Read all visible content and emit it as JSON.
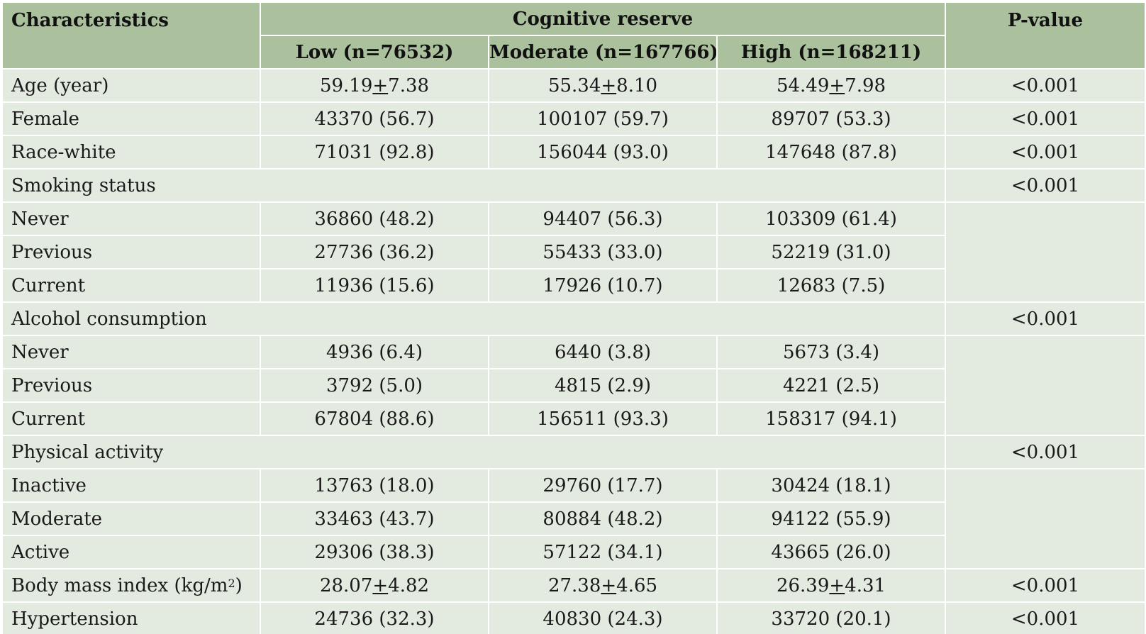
{
  "table": {
    "header": {
      "characteristics": "Characteristics",
      "group": "Cognitive reserve",
      "low": "Low (n=76532)",
      "moderate": "Moderate (n=167766)",
      "high": "High (n=168211)",
      "pvalue": "P-value"
    },
    "rows": {
      "age": {
        "label": "Age (year)",
        "low_mean": "59.19",
        "low_sd": "7.38",
        "mod_mean": "55.34",
        "mod_sd": "8.10",
        "high_mean": "54.49",
        "high_sd": "7.98",
        "p": "<0.001"
      },
      "female": {
        "label": "Female",
        "low": "43370 (56.7)",
        "moderate": "100107 (59.7)",
        "high": "89707 (53.3)",
        "p": "<0.001"
      },
      "race": {
        "label": "Race-white",
        "low": "71031 (92.8)",
        "moderate": "156044 (93.0)",
        "high": "147648 (87.8)",
        "p": "<0.001"
      },
      "smoking": {
        "label": "Smoking status",
        "p": "<0.001"
      },
      "smoking_never": {
        "label": "Never",
        "low": "36860 (48.2)",
        "moderate": "94407 (56.3)",
        "high": "103309 (61.4)"
      },
      "smoking_previous": {
        "label": "Previous",
        "low": "27736 (36.2)",
        "moderate": "55433 (33.0)",
        "high": "52219 (31.0)"
      },
      "smoking_current": {
        "label": "Current",
        "low": "11936 (15.6)",
        "moderate": "17926 (10.7)",
        "high": "12683 (7.5)"
      },
      "alcohol": {
        "label": "Alcohol consumption",
        "p": "<0.001"
      },
      "alcohol_never": {
        "label": "Never",
        "low": "4936 (6.4)",
        "moderate": "6440 (3.8)",
        "high": "5673 (3.4)"
      },
      "alcohol_previous": {
        "label": "Previous",
        "low": "3792 (5.0)",
        "moderate": "4815 (2.9)",
        "high": "4221 (2.5)"
      },
      "alcohol_current": {
        "label": "Current",
        "low": "67804 (88.6)",
        "moderate": "156511 (93.3)",
        "high": "158317 (94.1)"
      },
      "activity": {
        "label": "Physical activity",
        "p": "<0.001"
      },
      "activity_inactive": {
        "label": "Inactive",
        "low": "13763 (18.0)",
        "moderate": "29760 (17.7)",
        "high": "30424 (18.1)"
      },
      "activity_moderate": {
        "label": "Moderate",
        "low": "33463 (43.7)",
        "moderate": "80884 (48.2)",
        "high": "94122 (55.9)"
      },
      "activity_active": {
        "label": "Active",
        "low": "29306 (38.3)",
        "moderate": "57122 (34.1)",
        "high": "43665 (26.0)"
      },
      "bmi": {
        "label": "Body mass index (kg/m",
        "label_sup": "2",
        "label_end": ")",
        "low_mean": "28.07",
        "low_sd": "4.82",
        "mod_mean": "27.38",
        "mod_sd": "4.65",
        "high_mean": "26.39",
        "high_sd": "4.31",
        "p": "<0.001"
      },
      "hypertension": {
        "label": "Hypertension",
        "low": "24736 (32.3)",
        "moderate": "40830 (24.3)",
        "high": "33720 (20.1)",
        "p": "<0.001"
      }
    },
    "pm_symbol": "+"
  },
  "colors": {
    "header_bg": "#abc09c",
    "body_bg": "#e3eadf",
    "grid": "#ffffff"
  }
}
